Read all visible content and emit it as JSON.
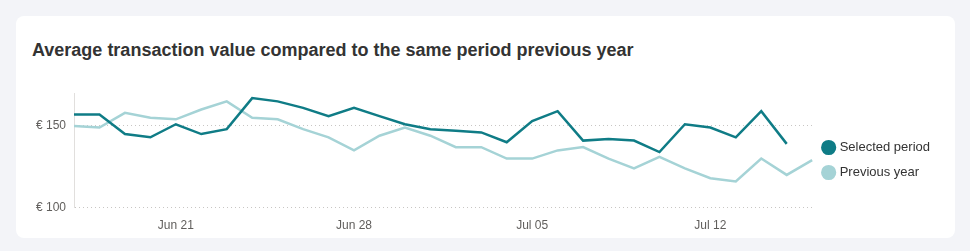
{
  "chart_data": {
    "type": "line",
    "title": "Average transaction value compared to the same period previous year",
    "categories": [
      null,
      null,
      null,
      null,
      "Jun 21",
      null,
      null,
      null,
      null,
      null,
      null,
      "Jun 28",
      null,
      null,
      null,
      null,
      null,
      null,
      "Jul 05",
      null,
      null,
      null,
      null,
      null,
      null,
      "Jul 12",
      null,
      null,
      null,
      null
    ],
    "series": [
      {
        "name": "Selected period",
        "color": "#0f7c86",
        "values": [
          157,
          157,
          145,
          143,
          151,
          145,
          148,
          167,
          165,
          161,
          156,
          161,
          156,
          151,
          148,
          147,
          146,
          140,
          153,
          159,
          141,
          142,
          141,
          134,
          151,
          149,
          143,
          159,
          139,
          null
        ]
      },
      {
        "name": "Previous year",
        "color": "#a5d3d6",
        "values": [
          150,
          149,
          158,
          155,
          154,
          160,
          165,
          155,
          154,
          148,
          143,
          135,
          144,
          149,
          144,
          137,
          137,
          130,
          130,
          135,
          137,
          130,
          124,
          131,
          124,
          118,
          116,
          130,
          120,
          129
        ]
      }
    ],
    "ylim": [
      100,
      170
    ],
    "yticks": [
      {
        "value": 100,
        "label": "€ 100"
      },
      {
        "value": 150,
        "label": "€ 150"
      }
    ],
    "grid": true,
    "legend": "right"
  }
}
